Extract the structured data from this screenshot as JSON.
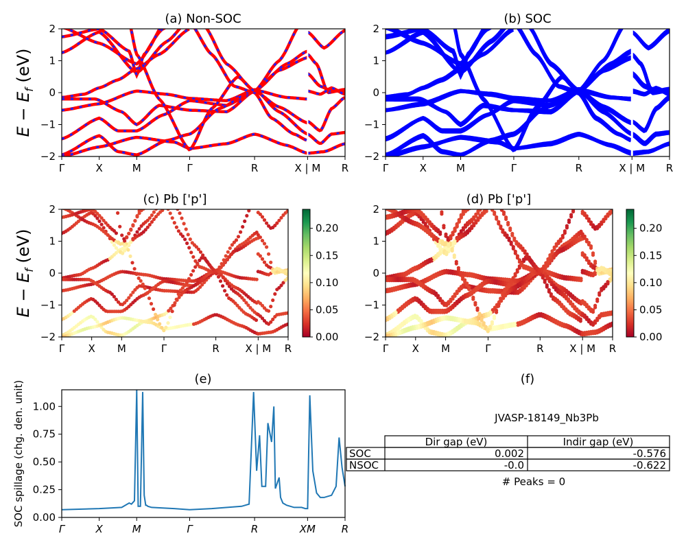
{
  "figure": {
    "ylabel_band": "E − E_f (eV)",
    "ylabel_spillage": "SOC spillage (chg. den. unit)"
  },
  "colors": {
    "nonsoc_red": "#ff0000",
    "nonsoc_blue": "#1f1fff",
    "soc_blue": "#0000ff",
    "spillage_line": "#1f77b4",
    "cmap": [
      "#a50026",
      "#d73027",
      "#f46d43",
      "#fdae61",
      "#fee08b",
      "#ffffbf",
      "#d9ef8b",
      "#a6d96a",
      "#66bd63",
      "#1a9850",
      "#006837"
    ]
  },
  "kpath": {
    "labels": [
      "Γ",
      "X",
      "M",
      "Γ",
      "R",
      "X | M",
      "R"
    ],
    "positions": [
      0,
      0.5,
      1.0,
      1.707,
      2.573,
      3.28,
      3.78
    ]
  },
  "chart_data": [
    {
      "id": "a",
      "type": "line",
      "title": "(a) Non-SOC",
      "ylabel": "E − E_f (eV)",
      "ylim": [
        -2,
        2
      ],
      "yticks": [
        "2",
        "1",
        "0",
        "−1",
        "−2"
      ],
      "xticks": [
        "Γ",
        "X",
        "M",
        "Γ",
        "R",
        "X | M",
        "R"
      ],
      "style": "red line with blue dashes",
      "series": []
    },
    {
      "id": "b",
      "type": "line",
      "title": "(b) SOC",
      "ylim": [
        -2,
        2
      ],
      "yticks": [
        "2",
        "1",
        "0",
        "−1",
        "−2"
      ],
      "xticks": [
        "Γ",
        "X",
        "M",
        "Γ",
        "R",
        "X | M",
        "R"
      ],
      "style": "thick blue lines",
      "series": []
    },
    {
      "id": "c",
      "type": "scatter",
      "title": "(c)  Pb ['p']",
      "ylabel": "E − E_f (eV)",
      "ylim": [
        -2,
        2
      ],
      "yticks": [
        "2",
        "1",
        "0",
        "−1",
        "−2"
      ],
      "xticks": [
        "Γ",
        "X",
        "M",
        "Γ",
        "R",
        "X | M",
        "R"
      ],
      "colorbar": {
        "min": 0.0,
        "max": 0.235,
        "ticks": [
          "0.00",
          "0.05",
          "0.10",
          "0.15",
          "0.20"
        ],
        "tick_values": [
          0,
          0.05,
          0.1,
          0.15,
          0.2
        ],
        "colormap": "RdYlGn"
      }
    },
    {
      "id": "d",
      "type": "scatter",
      "title": "(d) Pb ['p']",
      "ylim": [
        -2,
        2
      ],
      "yticks": [
        "2",
        "1",
        "0",
        "−1",
        "−2"
      ],
      "xticks": [
        "Γ",
        "X",
        "M",
        "Γ",
        "R",
        "X | M",
        "R"
      ],
      "colorbar": {
        "min": 0.0,
        "max": 0.235,
        "ticks": [
          "0.00",
          "0.05",
          "0.10",
          "0.15",
          "0.20"
        ],
        "tick_values": [
          0,
          0.05,
          0.1,
          0.15,
          0.2
        ],
        "colormap": "RdYlGn"
      }
    },
    {
      "id": "e",
      "type": "line",
      "title": "(e)",
      "ylabel": "SOC spillage (chg. den. unit)",
      "ylim": [
        0,
        1.15
      ],
      "yticks": [
        "0.00",
        "0.25",
        "0.50",
        "0.75",
        "1.00"
      ],
      "ytick_values": [
        0,
        0.25,
        0.5,
        0.75,
        1.0
      ],
      "xticks": [
        "Γ",
        "X",
        "M",
        "Γ",
        "R",
        "XM",
        "R"
      ],
      "x": [
        0,
        0.5,
        0.8,
        0.9,
        0.93,
        0.97,
        1.0,
        1.02,
        1.05,
        1.08,
        1.1,
        1.12,
        1.13,
        1.15,
        1.2,
        1.5,
        1.707,
        2.0,
        2.4,
        2.5,
        2.56,
        2.6,
        2.64,
        2.67,
        2.72,
        2.75,
        2.8,
        2.83,
        2.85,
        2.9,
        2.92,
        2.95,
        3.0,
        3.1,
        3.2,
        3.25,
        3.28,
        3.31,
        3.35,
        3.4,
        3.45,
        3.5,
        3.6,
        3.66,
        3.7,
        3.74,
        3.78
      ],
      "y": [
        0.07,
        0.08,
        0.09,
        0.13,
        0.12,
        0.15,
        1.15,
        0.1,
        0.1,
        1.13,
        0.2,
        0.11,
        0.11,
        0.1,
        0.09,
        0.08,
        0.07,
        0.08,
        0.1,
        0.12,
        1.13,
        0.42,
        0.74,
        0.28,
        0.28,
        0.85,
        0.68,
        1.0,
        0.26,
        0.36,
        0.18,
        0.13,
        0.11,
        0.09,
        0.09,
        0.08,
        0.08,
        1.1,
        0.42,
        0.22,
        0.18,
        0.18,
        0.2,
        0.28,
        0.72,
        0.45,
        0.28
      ]
    },
    {
      "id": "f",
      "type": "table",
      "title": "(f)",
      "caption": "JVASP-18149_Nb3Pb",
      "columns": [
        "Dir gap (eV)",
        "Indir gap (eV)"
      ],
      "rows": [
        {
          "label": "SOC",
          "values": [
            "0.002",
            "-0.576"
          ]
        },
        {
          "label": "NSOC",
          "values": [
            "-0.0",
            "-0.622"
          ]
        }
      ],
      "footer": "# Peaks = 0"
    }
  ]
}
